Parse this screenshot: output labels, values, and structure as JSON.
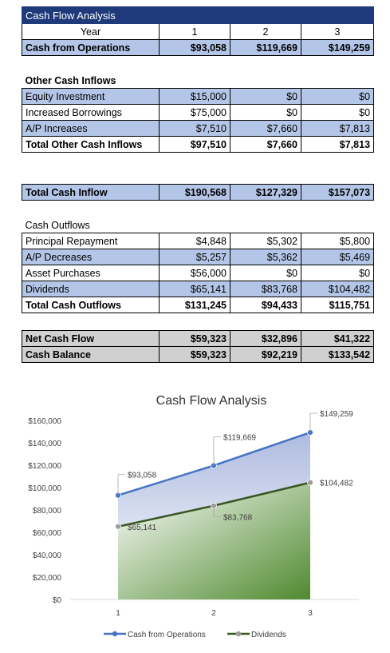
{
  "table": {
    "title": "Cash Flow Analysis",
    "year_label": "Year",
    "years": [
      "1",
      "2",
      "3"
    ],
    "cfo": {
      "label": "Cash from Operations",
      "values": [
        "$93,058",
        "$119,669",
        "$149,259"
      ]
    },
    "other_inflows": {
      "heading": "Other Cash Inflows",
      "rows": [
        {
          "label": "Equity Investment",
          "values": [
            "$15,000",
            "$0",
            "$0"
          ]
        },
        {
          "label": "Increased Borrowings",
          "values": [
            "$75,000",
            "$0",
            "$0"
          ]
        },
        {
          "label": "A/P Increases",
          "values": [
            "$7,510",
            "$7,660",
            "$7,813"
          ]
        }
      ],
      "total": {
        "label": "Total Other Cash Inflows",
        "values": [
          "$97,510",
          "$7,660",
          "$7,813"
        ]
      }
    },
    "total_inflow": {
      "label": "Total Cash Inflow",
      "values": [
        "$190,568",
        "$127,329",
        "$157,073"
      ]
    },
    "outflows": {
      "heading": "Cash Outflows",
      "rows": [
        {
          "label": "Principal Repayment",
          "values": [
            "$4,848",
            "$5,302",
            "$5,800"
          ]
        },
        {
          "label": "A/P Decreases",
          "values": [
            "$5,257",
            "$5,362",
            "$5,469"
          ]
        },
        {
          "label": "Asset Purchases",
          "values": [
            "$56,000",
            "$0",
            "$0"
          ]
        },
        {
          "label": "Dividends",
          "values": [
            "$65,141",
            "$83,768",
            "$104,482"
          ]
        }
      ],
      "total": {
        "label": "Total Cash Outflows",
        "values": [
          "$131,245",
          "$94,433",
          "$115,751"
        ]
      }
    },
    "net_cash_flow": {
      "label": "Net Cash Flow",
      "values": [
        "$59,323",
        "$32,896",
        "$41,322"
      ]
    },
    "cash_balance": {
      "label": "Cash Balance",
      "values": [
        "$59,323",
        "$92,219",
        "$133,542"
      ]
    }
  },
  "chart_data": {
    "type": "area",
    "title": "Cash Flow Analysis",
    "categories": [
      "1",
      "2",
      "3"
    ],
    "series": [
      {
        "name": "Cash from Operations",
        "values": [
          93058,
          119669,
          149259
        ],
        "labels": [
          "$93,058",
          "$119,669",
          "$149,259"
        ],
        "color": "#4472c4"
      },
      {
        "name": "Dividends",
        "values": [
          65141,
          83768,
          104482
        ],
        "labels": [
          "$65,141",
          "$83,768",
          "$104,482"
        ],
        "color": "#375623"
      }
    ],
    "ylim": [
      0,
      160000
    ],
    "ytick_labels": [
      "$0",
      "$20,000",
      "$40,000",
      "$60,000",
      "$80,000",
      "$100,000",
      "$120,000",
      "$140,000",
      "$160,000"
    ],
    "grid": false,
    "legend": "bottom"
  }
}
